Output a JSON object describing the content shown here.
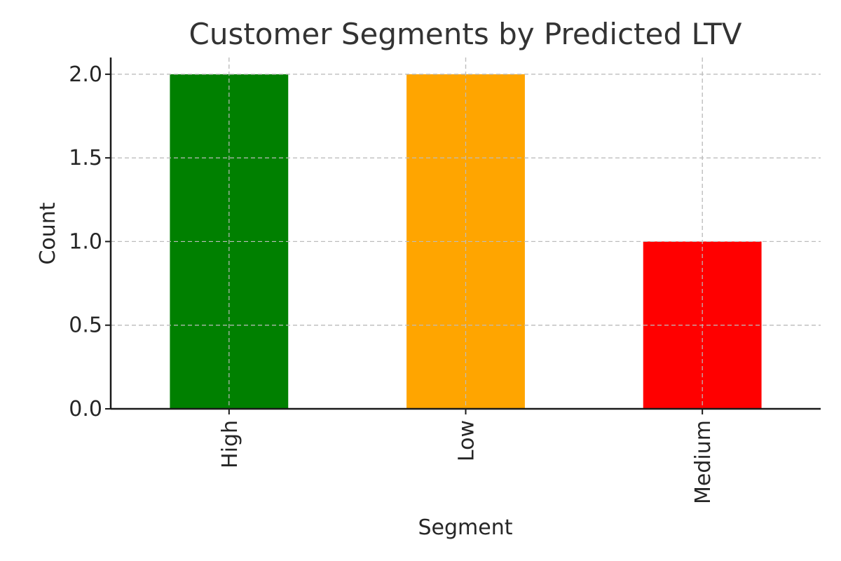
{
  "chart_data": {
    "type": "bar",
    "title": "Customer Segments by Predicted LTV",
    "xlabel": "Segment",
    "ylabel": "Count",
    "categories": [
      "High",
      "Low",
      "Medium"
    ],
    "values": [
      2,
      2,
      1
    ],
    "colors": [
      "#008000",
      "#ffa500",
      "#ff0000"
    ],
    "ylim": [
      0,
      2.1
    ],
    "yticks": [
      0,
      0.5,
      1,
      1.5,
      2
    ],
    "ytick_labels": [
      "0.0",
      "0.5",
      "1.0",
      "1.5",
      "2.0"
    ],
    "grid": true,
    "xtick_rotation": "vertical"
  }
}
